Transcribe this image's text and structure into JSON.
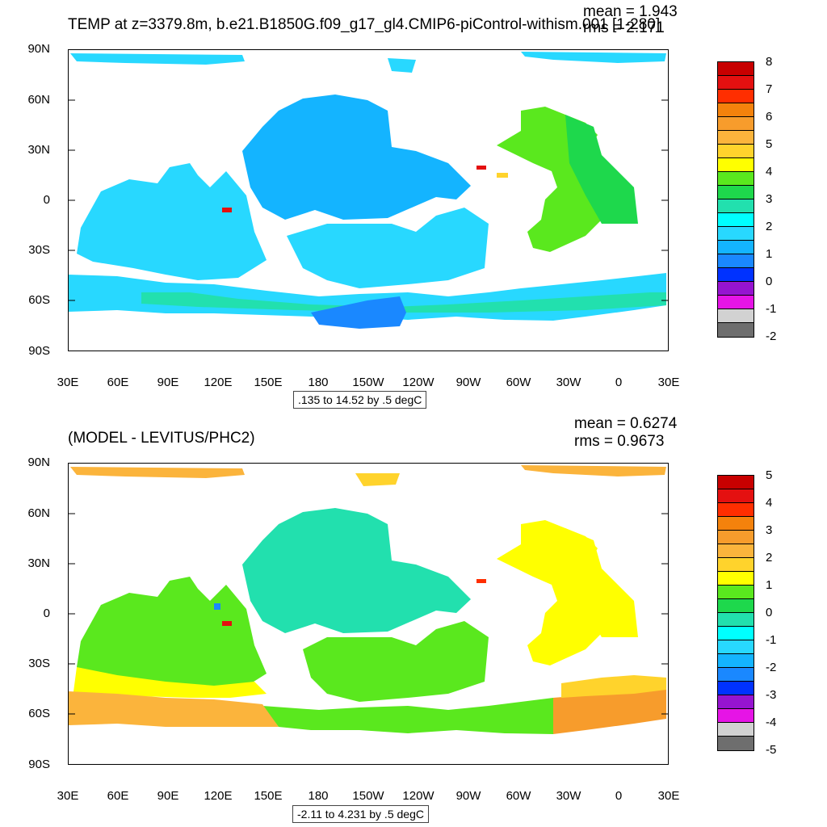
{
  "top": {
    "title": "TEMP at z=3379.8m, b.e21.B1850G.f09_g17_gl4.CMIP6-piControl-withism.001 [1-280]",
    "mean": "mean = 1.943",
    "rms": "rms = 2.171",
    "range": ".135 to 14.52 by .5 degC",
    "colorbar_labels": [
      "8",
      "7",
      "6",
      "5",
      "4",
      "3",
      "2",
      "1",
      "0",
      "-1",
      "-2"
    ],
    "colorbar_colors": [
      "#c80000",
      "#e41010",
      "#ff2e00",
      "#f4820c",
      "#f79c2c",
      "#fbb43c",
      "#ffd32c",
      "#ffff00",
      "#5ae81e",
      "#1ed84c",
      "#22e0ae",
      "#00ffff",
      "#28d8ff",
      "#14b4ff",
      "#1a88ff",
      "#0032ff",
      "#9614d0",
      "#e614e6",
      "#d2d2d2",
      "#6e6e6e"
    ]
  },
  "bottom": {
    "title": "(MODEL - LEVITUS/PHC2)",
    "mean": "mean = 0.6274",
    "rms": "rms = 0.9673",
    "range": "-2.11 to 4.231 by .5 degC",
    "colorbar_labels": [
      "5",
      "4",
      "3",
      "2",
      "1",
      "0",
      "-1",
      "-2",
      "-3",
      "-4",
      "-5"
    ],
    "colorbar_colors": [
      "#c80000",
      "#e41010",
      "#ff2e00",
      "#f4820c",
      "#f79c2c",
      "#fbb43c",
      "#ffd32c",
      "#ffff00",
      "#5ae81e",
      "#1ed84c",
      "#22e0ae",
      "#00ffff",
      "#28d8ff",
      "#14b4ff",
      "#1a88ff",
      "#0032ff",
      "#9614d0",
      "#e614e6",
      "#d2d2d2",
      "#6e6e6e"
    ]
  },
  "axes": {
    "lat_labels": [
      "90N",
      "60N",
      "30N",
      "0",
      "30S",
      "60S",
      "90S"
    ],
    "lon_labels": [
      "30E",
      "60E",
      "90E",
      "120E",
      "150E",
      "180",
      "150W",
      "120W",
      "90W",
      "60W",
      "30W",
      "0",
      "30E"
    ]
  }
}
